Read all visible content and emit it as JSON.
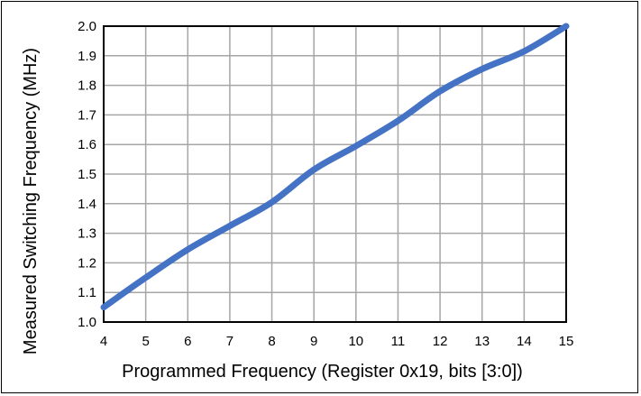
{
  "chart_data": {
    "type": "line",
    "title": "",
    "xlabel": "Programmed Frequency (Register 0x19, bits [3:0])",
    "ylabel": "Measured Switching Frequency (MHz)",
    "xlim": [
      4,
      15
    ],
    "ylim": [
      1.0,
      2.0
    ],
    "x_ticks": [
      "4",
      "5",
      "6",
      "7",
      "8",
      "9",
      "10",
      "11",
      "12",
      "13",
      "14",
      "15"
    ],
    "y_ticks": [
      "1.0",
      "1.1",
      "1.2",
      "1.3",
      "1.4",
      "1.5",
      "1.6",
      "1.7",
      "1.8",
      "1.9",
      "2.0"
    ],
    "grid": true,
    "legend": "none",
    "series": [
      {
        "color": "#4472C4",
        "x": [
          4,
          5,
          6,
          7,
          8,
          9,
          10,
          11,
          12,
          13,
          14,
          15
        ],
        "y": [
          1.05,
          1.15,
          1.245,
          1.325,
          1.405,
          1.515,
          1.595,
          1.68,
          1.78,
          1.855,
          1.915,
          2.0
        ]
      }
    ]
  }
}
